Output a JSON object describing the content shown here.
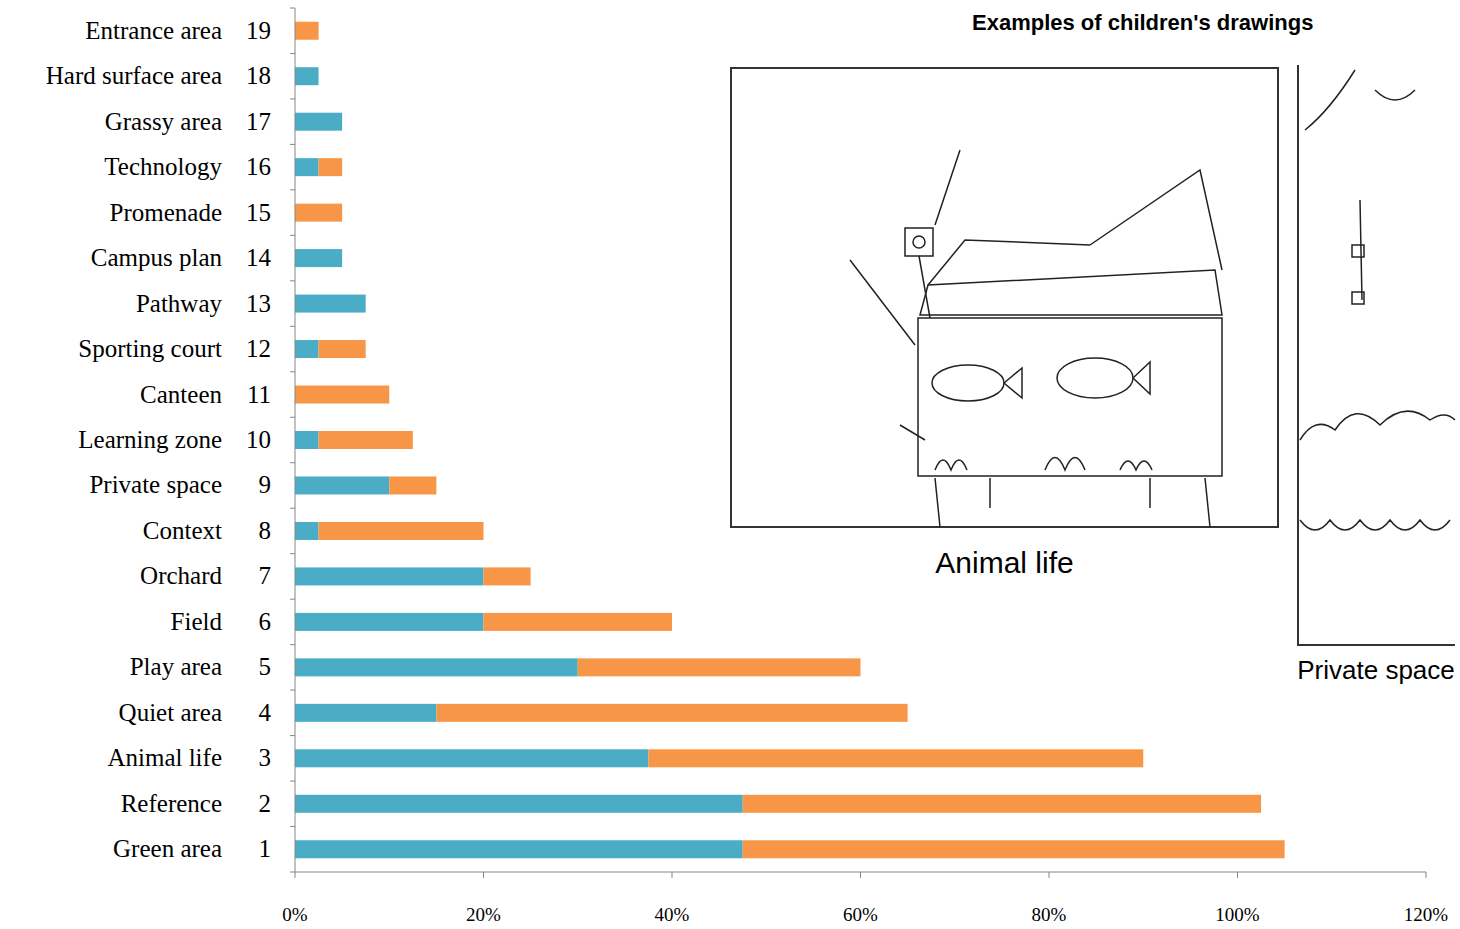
{
  "chart_data": {
    "type": "bar",
    "orientation": "horizontal",
    "stacked": true,
    "categories": [
      "Green area",
      "Reference",
      "Animal life",
      "Quiet area",
      "Play area",
      "Field",
      "Orchard",
      "Context",
      "Private space",
      "Learning zone",
      "Canteen",
      "Sporting court",
      "Pathway",
      "Campus plan",
      "Promenade",
      "Technology",
      "Grassy area",
      "Hard surface area",
      "Entrance area"
    ],
    "category_numbers": [
      1,
      2,
      3,
      4,
      5,
      6,
      7,
      8,
      9,
      10,
      11,
      12,
      13,
      14,
      15,
      16,
      17,
      18,
      19
    ],
    "series": [
      {
        "color": "#4bacc6",
        "values": [
          47.5,
          47.5,
          37.5,
          15,
          30,
          20,
          20,
          2.5,
          10,
          2.5,
          0,
          2.5,
          7.5,
          5,
          0,
          2.5,
          5,
          2.5,
          0
        ]
      },
      {
        "color": "#f79646",
        "values": [
          57.5,
          55,
          52.5,
          50,
          30,
          20,
          5,
          17.5,
          5,
          10,
          10,
          5,
          0,
          0,
          5,
          2.5,
          0,
          0,
          2.5
        ]
      }
    ],
    "xlim": [
      0,
      120
    ],
    "xticks": [
      {
        "value": 0,
        "label": "0%"
      },
      {
        "value": 20,
        "label": "20%"
      },
      {
        "value": 40,
        "label": "40%"
      },
      {
        "value": 60,
        "label": "60%"
      },
      {
        "value": 80,
        "label": "80%"
      },
      {
        "value": 100,
        "label": "100%"
      },
      {
        "value": 120,
        "label": "120%"
      }
    ],
    "grid": false
  },
  "drawings": {
    "title": "Examples of children's drawings",
    "captions": [
      "Animal life",
      "Private space"
    ]
  }
}
